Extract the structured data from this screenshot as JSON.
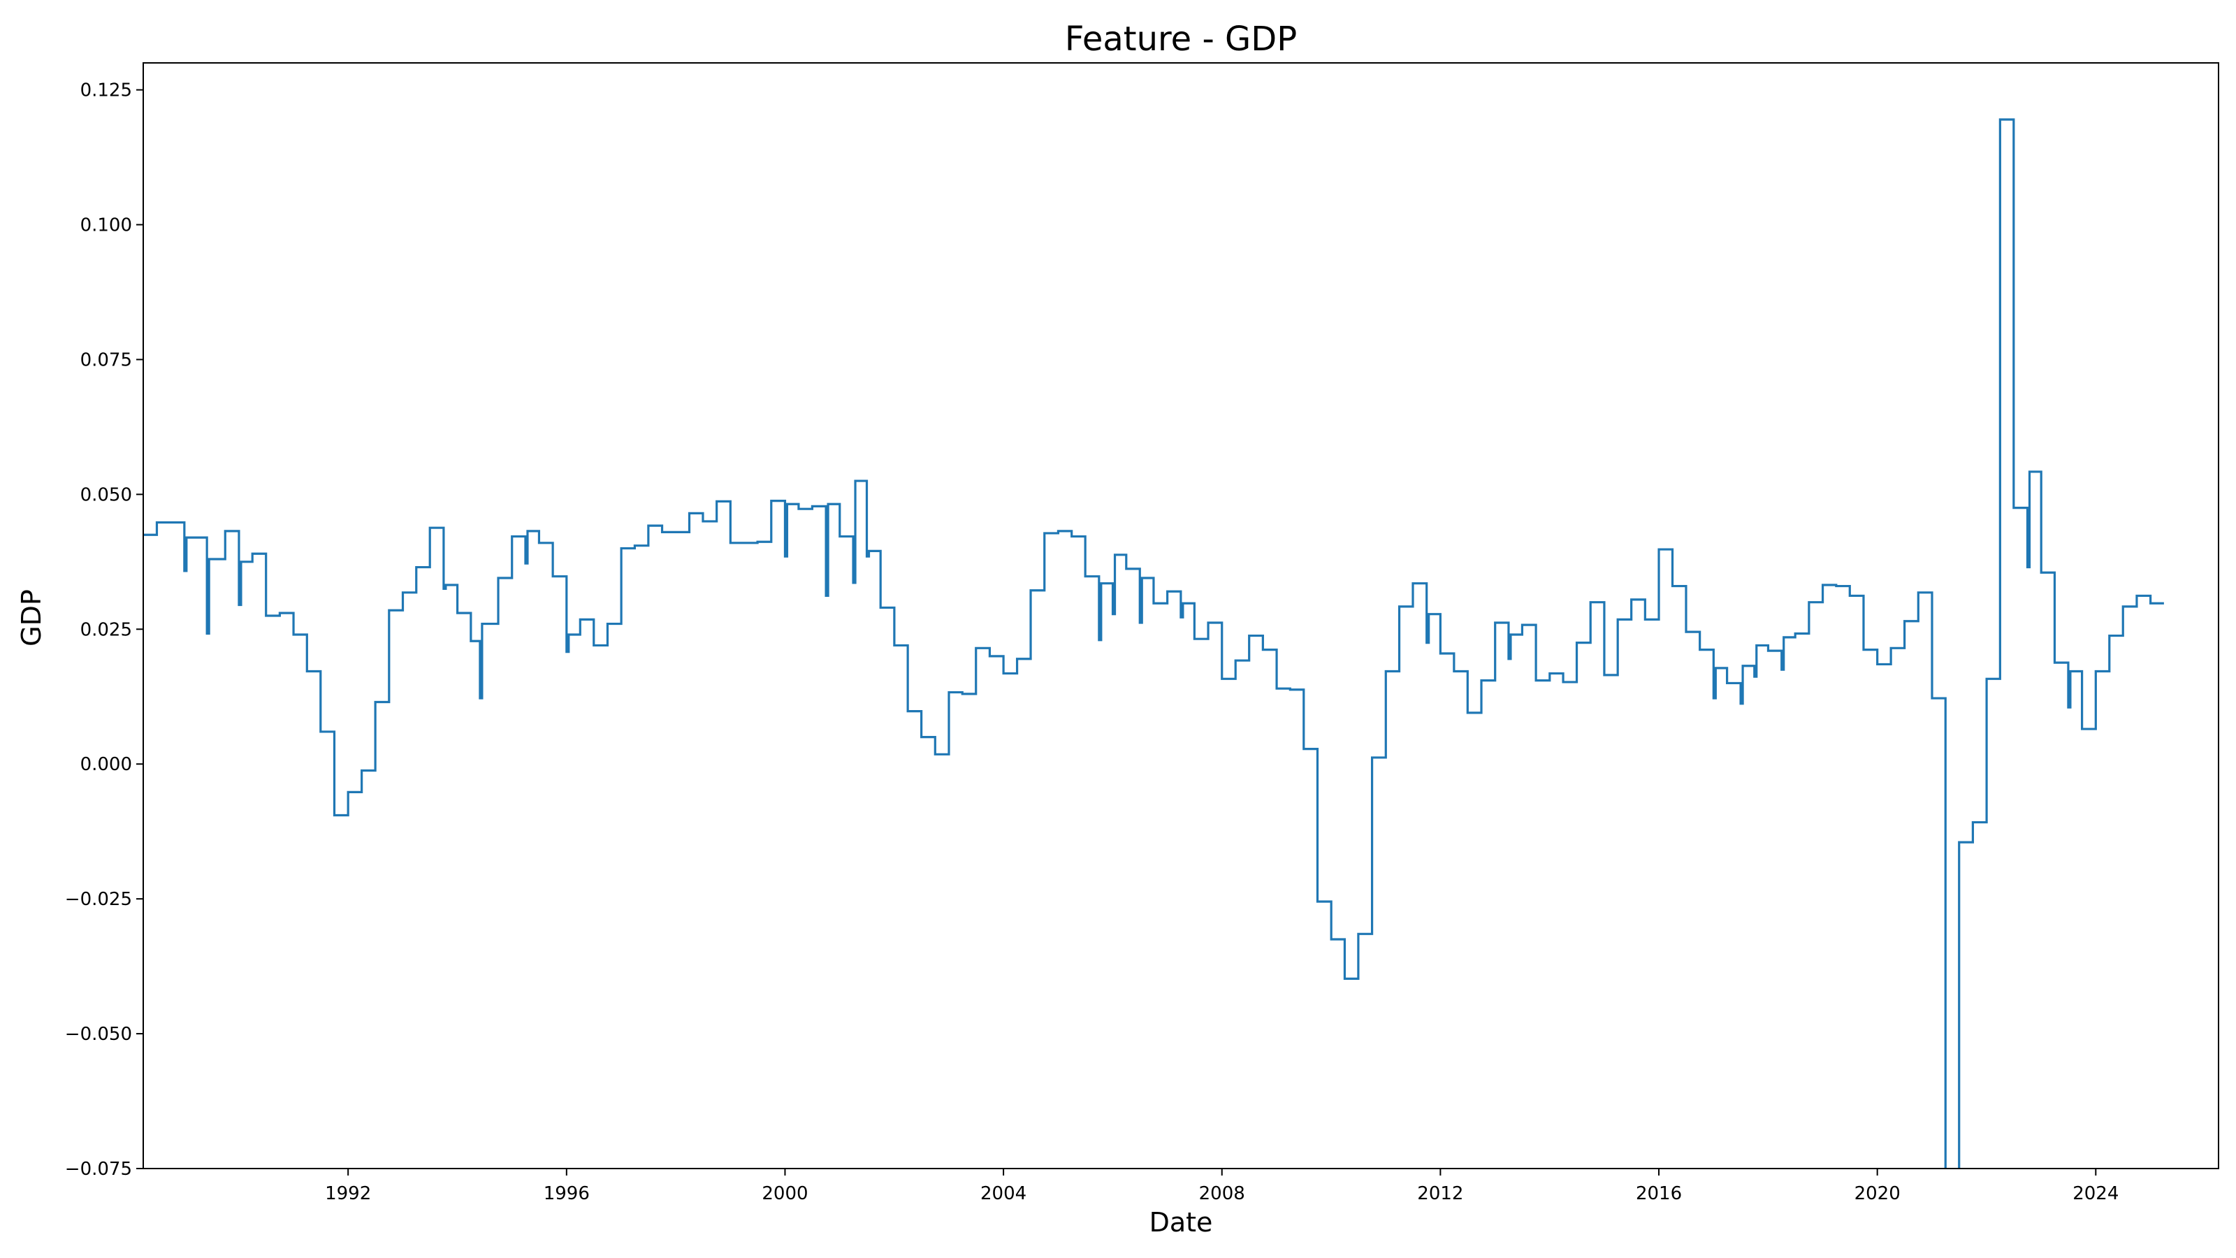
{
  "chart_data": {
    "type": "line",
    "title": "Feature - GDP",
    "xlabel": "Date",
    "ylabel": "GDP",
    "xlim": [
      "1988-04-01",
      "2026-04-01"
    ],
    "ylim": [
      -0.075,
      0.13
    ],
    "x_ticks": [
      "1992",
      "1996",
      "2000",
      "2004",
      "2008",
      "2012",
      "2016",
      "2020",
      "2024"
    ],
    "y_ticks": [
      "0.125",
      "0.100",
      "0.075",
      "0.050",
      "0.025",
      "0.000",
      "−0.025",
      "−0.050",
      "−0.075"
    ],
    "y_tick_values": [
      0.125,
      0.1,
      0.075,
      0.05,
      0.025,
      0.0,
      -0.025,
      -0.05,
      -0.075
    ],
    "grid": false,
    "series": [
      {
        "color": "#1f77b4",
        "step": true,
        "points": [
          [
            "1988-04-01",
            0.0425
          ],
          [
            "1988-07-01",
            0.0448
          ],
          [
            "1988-10-01",
            0.0448
          ],
          [
            "1989-01-01",
            0.0358
          ],
          [
            "1989-01-15",
            0.042
          ],
          [
            "1989-04-01",
            0.042
          ],
          [
            "1989-06-01",
            0.0242
          ],
          [
            "1989-06-15",
            0.038
          ],
          [
            "1989-10-01",
            0.0432
          ],
          [
            "1990-01-01",
            0.0295
          ],
          [
            "1990-01-15",
            0.0375
          ],
          [
            "1990-04-01",
            0.039
          ],
          [
            "1990-07-01",
            0.0275
          ],
          [
            "1990-10-01",
            0.028
          ],
          [
            "1991-01-01",
            0.024
          ],
          [
            "1991-04-01",
            0.0172
          ],
          [
            "1991-07-01",
            0.006
          ],
          [
            "1991-10-01",
            -0.0095
          ],
          [
            "1992-01-01",
            -0.0052
          ],
          [
            "1992-04-01",
            -0.0012
          ],
          [
            "1992-07-01",
            0.0115
          ],
          [
            "1992-10-01",
            0.0285
          ],
          [
            "1993-01-01",
            0.0318
          ],
          [
            "1993-04-01",
            0.0365
          ],
          [
            "1993-07-01",
            0.0438
          ],
          [
            "1993-10-01",
            0.0325
          ],
          [
            "1993-10-15",
            0.0332
          ],
          [
            "1994-01-01",
            0.028
          ],
          [
            "1994-04-01",
            0.0228
          ],
          [
            "1994-06-01",
            0.0122
          ],
          [
            "1994-06-15",
            0.026
          ],
          [
            "1994-10-01",
            0.0345
          ],
          [
            "1995-01-01",
            0.0422
          ],
          [
            "1995-04-01",
            0.0372
          ],
          [
            "1995-04-15",
            0.0432
          ],
          [
            "1995-07-01",
            0.041
          ],
          [
            "1995-10-01",
            0.0348
          ],
          [
            "1996-01-01",
            0.0208
          ],
          [
            "1996-01-15",
            0.024
          ],
          [
            "1996-04-01",
            0.0268
          ],
          [
            "1996-07-01",
            0.022
          ],
          [
            "1996-10-01",
            0.026
          ],
          [
            "1997-01-01",
            0.04
          ],
          [
            "1997-04-01",
            0.0405
          ],
          [
            "1997-07-01",
            0.0442
          ],
          [
            "1997-10-01",
            0.043
          ],
          [
            "1998-01-01",
            0.043
          ],
          [
            "1998-04-01",
            0.0465
          ],
          [
            "1998-07-01",
            0.045
          ],
          [
            "1998-10-01",
            0.0487
          ],
          [
            "1999-01-01",
            0.041
          ],
          [
            "1999-04-01",
            0.041
          ],
          [
            "1999-07-01",
            0.0412
          ],
          [
            "1999-10-01",
            0.0488
          ],
          [
            "2000-01-01",
            0.0385
          ],
          [
            "2000-01-15",
            0.0482
          ],
          [
            "2000-04-01",
            0.0473
          ],
          [
            "2000-07-01",
            0.0478
          ],
          [
            "2000-10-01",
            0.0312
          ],
          [
            "2000-10-15",
            0.0482
          ],
          [
            "2001-01-01",
            0.0422
          ],
          [
            "2001-04-01",
            0.0336
          ],
          [
            "2001-04-15",
            0.0525
          ],
          [
            "2001-07-01",
            0.0385
          ],
          [
            "2001-07-15",
            0.0395
          ],
          [
            "2001-10-01",
            0.029
          ],
          [
            "2002-01-01",
            0.022
          ],
          [
            "2002-04-01",
            0.0098
          ],
          [
            "2002-07-01",
            0.005
          ],
          [
            "2002-10-01",
            0.0018
          ],
          [
            "2003-01-01",
            0.0133
          ],
          [
            "2003-04-01",
            0.013
          ],
          [
            "2003-07-01",
            0.0215
          ],
          [
            "2003-10-01",
            0.02
          ],
          [
            "2004-01-01",
            0.0168
          ],
          [
            "2004-04-01",
            0.0195
          ],
          [
            "2004-07-01",
            0.0322
          ],
          [
            "2004-10-01",
            0.0428
          ],
          [
            "2005-01-01",
            0.0432
          ],
          [
            "2005-04-01",
            0.0422
          ],
          [
            "2005-07-01",
            0.0348
          ],
          [
            "2005-10-01",
            0.023
          ],
          [
            "2005-10-15",
            0.0335
          ],
          [
            "2006-01-01",
            0.0278
          ],
          [
            "2006-01-15",
            0.0388
          ],
          [
            "2006-04-01",
            0.0362
          ],
          [
            "2006-07-01",
            0.0262
          ],
          [
            "2006-07-15",
            0.0345
          ],
          [
            "2006-10-01",
            0.0298
          ],
          [
            "2007-01-01",
            0.032
          ],
          [
            "2007-04-01",
            0.0272
          ],
          [
            "2007-04-15",
            0.0298
          ],
          [
            "2007-07-01",
            0.0232
          ],
          [
            "2007-10-01",
            0.0262
          ],
          [
            "2008-01-01",
            0.0158
          ],
          [
            "2008-04-01",
            0.0192
          ],
          [
            "2008-07-01",
            0.0238
          ],
          [
            "2008-10-01",
            0.0212
          ],
          [
            "2009-01-01",
            0.014
          ],
          [
            "2009-04-01",
            0.0138
          ],
          [
            "2009-07-01",
            0.0028
          ],
          [
            "2009-10-01",
            -0.0255
          ],
          [
            "2010-01-01",
            -0.0325
          ],
          [
            "2010-04-01",
            -0.0398
          ],
          [
            "2010-07-01",
            -0.0315
          ],
          [
            "2010-10-01",
            0.0012
          ],
          [
            "2011-01-01",
            0.0172
          ],
          [
            "2011-04-01",
            0.0292
          ],
          [
            "2011-07-01",
            0.0335
          ],
          [
            "2011-10-01",
            0.0225
          ],
          [
            "2011-10-15",
            0.0278
          ],
          [
            "2012-01-01",
            0.0205
          ],
          [
            "2012-04-01",
            0.0172
          ],
          [
            "2012-07-01",
            0.0095
          ],
          [
            "2012-10-01",
            0.0155
          ],
          [
            "2013-01-01",
            0.0262
          ],
          [
            "2013-04-01",
            0.0195
          ],
          [
            "2013-04-15",
            0.024
          ],
          [
            "2013-07-01",
            0.0258
          ],
          [
            "2013-10-01",
            0.0155
          ],
          [
            "2014-01-01",
            0.0168
          ],
          [
            "2014-04-01",
            0.0152
          ],
          [
            "2014-07-01",
            0.0225
          ],
          [
            "2014-10-01",
            0.03
          ],
          [
            "2015-01-01",
            0.0165
          ],
          [
            "2015-04-01",
            0.0268
          ],
          [
            "2015-07-01",
            0.0305
          ],
          [
            "2015-10-01",
            0.0268
          ],
          [
            "2016-01-01",
            0.0398
          ],
          [
            "2016-04-01",
            0.033
          ],
          [
            "2016-07-01",
            0.0245
          ],
          [
            "2016-10-01",
            0.0212
          ],
          [
            "2017-01-01",
            0.0122
          ],
          [
            "2017-01-15",
            0.0178
          ],
          [
            "2017-04-01",
            0.015
          ],
          [
            "2017-07-01",
            0.0112
          ],
          [
            "2017-07-15",
            0.0182
          ],
          [
            "2017-10-01",
            0.0162
          ],
          [
            "2017-10-15",
            0.022
          ],
          [
            "2018-01-01",
            0.021
          ],
          [
            "2018-04-01",
            0.0175
          ],
          [
            "2018-04-15",
            0.0235
          ],
          [
            "2018-07-01",
            0.0242
          ],
          [
            "2018-10-01",
            0.03
          ],
          [
            "2019-01-01",
            0.0332
          ],
          [
            "2019-04-01",
            0.033
          ],
          [
            "2019-07-01",
            0.0312
          ],
          [
            "2019-10-01",
            0.0212
          ],
          [
            "2020-01-01",
            0.0185
          ],
          [
            "2020-04-01",
            0.0215
          ],
          [
            "2020-07-01",
            0.0265
          ],
          [
            "2020-10-01",
            0.0318
          ],
          [
            "2021-01-01",
            0.0122
          ],
          [
            "2021-04-01",
            -0.09
          ],
          [
            "2021-07-01",
            -0.0145
          ],
          [
            "2021-10-01",
            -0.0108
          ],
          [
            "2022-01-01",
            0.0158
          ],
          [
            "2022-04-01",
            0.1195
          ],
          [
            "2022-07-01",
            0.0475
          ],
          [
            "2022-10-01",
            0.0365
          ],
          [
            "2022-10-15",
            0.0542
          ],
          [
            "2023-01-01",
            0.0355
          ],
          [
            "2023-04-01",
            0.0188
          ],
          [
            "2023-07-01",
            0.0105
          ],
          [
            "2023-07-15",
            0.0172
          ],
          [
            "2023-10-01",
            0.0065
          ],
          [
            "2024-01-01",
            0.0172
          ],
          [
            "2024-04-01",
            0.0238
          ],
          [
            "2024-07-01",
            0.0292
          ],
          [
            "2024-10-01",
            0.0312
          ],
          [
            "2025-01-01",
            0.0298
          ],
          [
            "2025-04-01",
            0.0298
          ]
        ]
      }
    ]
  }
}
